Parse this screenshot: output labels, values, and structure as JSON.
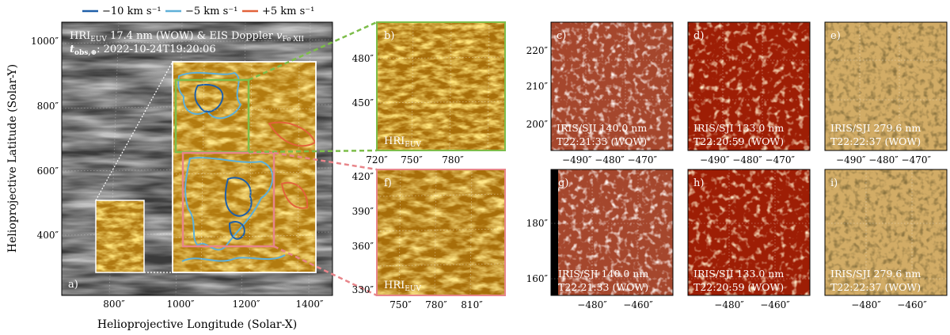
{
  "legend": {
    "entries": [
      {
        "label": "−10 km s⁻¹",
        "color": "#1f5fa8"
      },
      {
        "label": "−5 km s⁻¹",
        "color": "#5fb0d8"
      },
      {
        "label": "+5 km s⁻¹",
        "color": "#e2623a"
      }
    ]
  },
  "panel_a": {
    "label": "a)",
    "title": "HRIₑᵤᵥ 17.4 nm (WOW) & EIS Doppler v Fe XII",
    "title_main": "HRI",
    "title_sub": "EUV",
    "title_rest": " 17.4 nm (WOW) & EIS Doppler ",
    "title_v": "v",
    "title_vsub": "Fe XII",
    "time_main": "t",
    "time_sub": "obs,⊕",
    "time_rest": ": 2022-10-24T19:20:06",
    "xlabel": "Helioprojective Longitude (Solar-X)",
    "ylabel": "Helioprojective Latitude (Solar-Y)",
    "xticks": [
      "800″",
      "1000″",
      "1200″",
      "1400″"
    ],
    "yticks": [
      "1000″",
      "800″",
      "600″",
      "400″"
    ]
  },
  "panel_b": {
    "label": "b)",
    "caption_main": "HRI",
    "caption_sub": "EUV",
    "yticks": [
      "480″",
      "450″"
    ],
    "xticks": [
      "720″",
      "750″",
      "780″"
    ]
  },
  "panel_f": {
    "label": "f)",
    "caption_main": "HRI",
    "caption_sub": "EUV",
    "yticks": [
      "420″",
      "390″",
      "360″",
      "330″"
    ],
    "xticks": [
      "750″",
      "780″",
      "810″"
    ]
  },
  "panel_c": {
    "label": "c)",
    "line1": "IRIS/SJI 140.0 nm",
    "line2": "T22:21:33 (WOW)"
  },
  "panel_d": {
    "label": "d)",
    "line1": "IRIS/SJI 133.0 nm",
    "line2": "T22:20:59 (WOW)"
  },
  "panel_e": {
    "label": "e)",
    "line1": "IRIS/SJI 279.6 nm",
    "line2": "T22:22:37 (WOW)"
  },
  "panel_g": {
    "label": "g)",
    "line1": "IRIS/SJI 140.0 nm",
    "line2": "T22:21:33 (WOW)"
  },
  "panel_h": {
    "label": "h)",
    "line1": "IRIS/SJI 133.0 nm",
    "line2": "T22:20:59 (WOW)"
  },
  "panel_i": {
    "label": "i)",
    "line1": "IRIS/SJI 279.6 nm",
    "line2": "T22:22:37 (WOW)"
  },
  "row1_yticks": [
    "220″",
    "210″",
    "200″"
  ],
  "row1_xticks": [
    "−490″ −480″ −470″",
    "−490″ −480″ −470″",
    "−490″ −480″ −470″"
  ],
  "row2_yticks": [
    "180″",
    "160″"
  ],
  "row2_xticks": [
    "−480″",
    "−460″"
  ]
}
